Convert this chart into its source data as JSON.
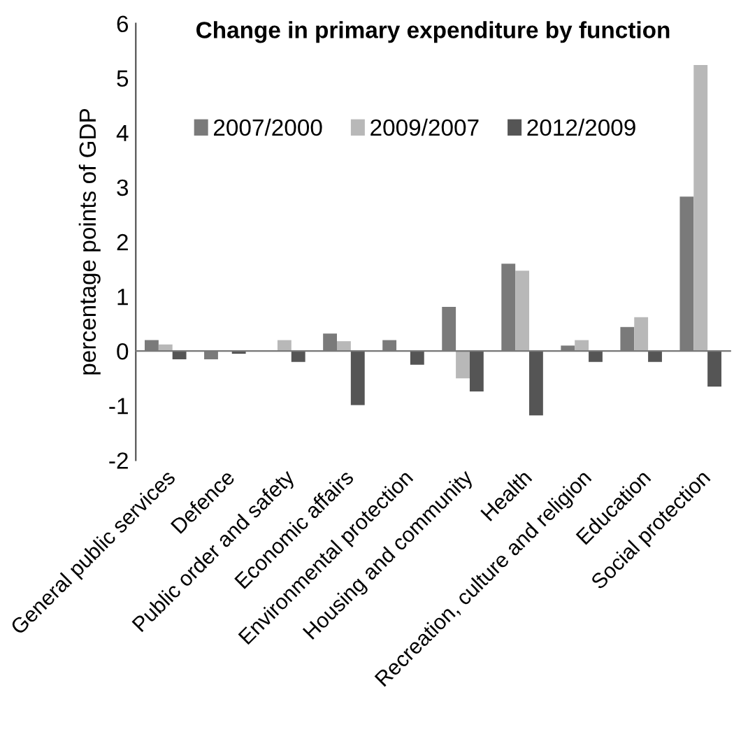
{
  "chart_data": {
    "type": "bar",
    "title": "Change in primary expenditure by function",
    "ylabel": "percentage points of GDP",
    "categories": [
      "General public services",
      "Defence",
      "Public order and safety",
      "Economic affairs",
      "Environmental protection",
      "Housing and community",
      "Health",
      "Recreation, culture and religion",
      "Education",
      "Social protection"
    ],
    "series": [
      {
        "name": "2007/2000",
        "color": "#7a7a7a",
        "values": [
          0.2,
          -0.15,
          0.0,
          0.32,
          0.2,
          0.81,
          1.6,
          0.1,
          0.44,
          2.83
        ]
      },
      {
        "name": "2009/2007",
        "color": "#b8b8b8",
        "values": [
          0.12,
          0.0,
          0.2,
          0.18,
          0.0,
          -0.5,
          1.47,
          0.2,
          0.62,
          5.24
        ]
      },
      {
        "name": "2012/2009",
        "color": "#555555",
        "values": [
          -0.15,
          -0.05,
          -0.2,
          -0.99,
          -0.25,
          -0.74,
          -1.18,
          -0.2,
          -0.2,
          -0.65
        ]
      }
    ],
    "ylim": [
      -2,
      6
    ],
    "yticks": [
      -2,
      -1,
      0,
      1,
      2,
      3,
      4,
      5,
      6
    ],
    "legend": "top"
  }
}
